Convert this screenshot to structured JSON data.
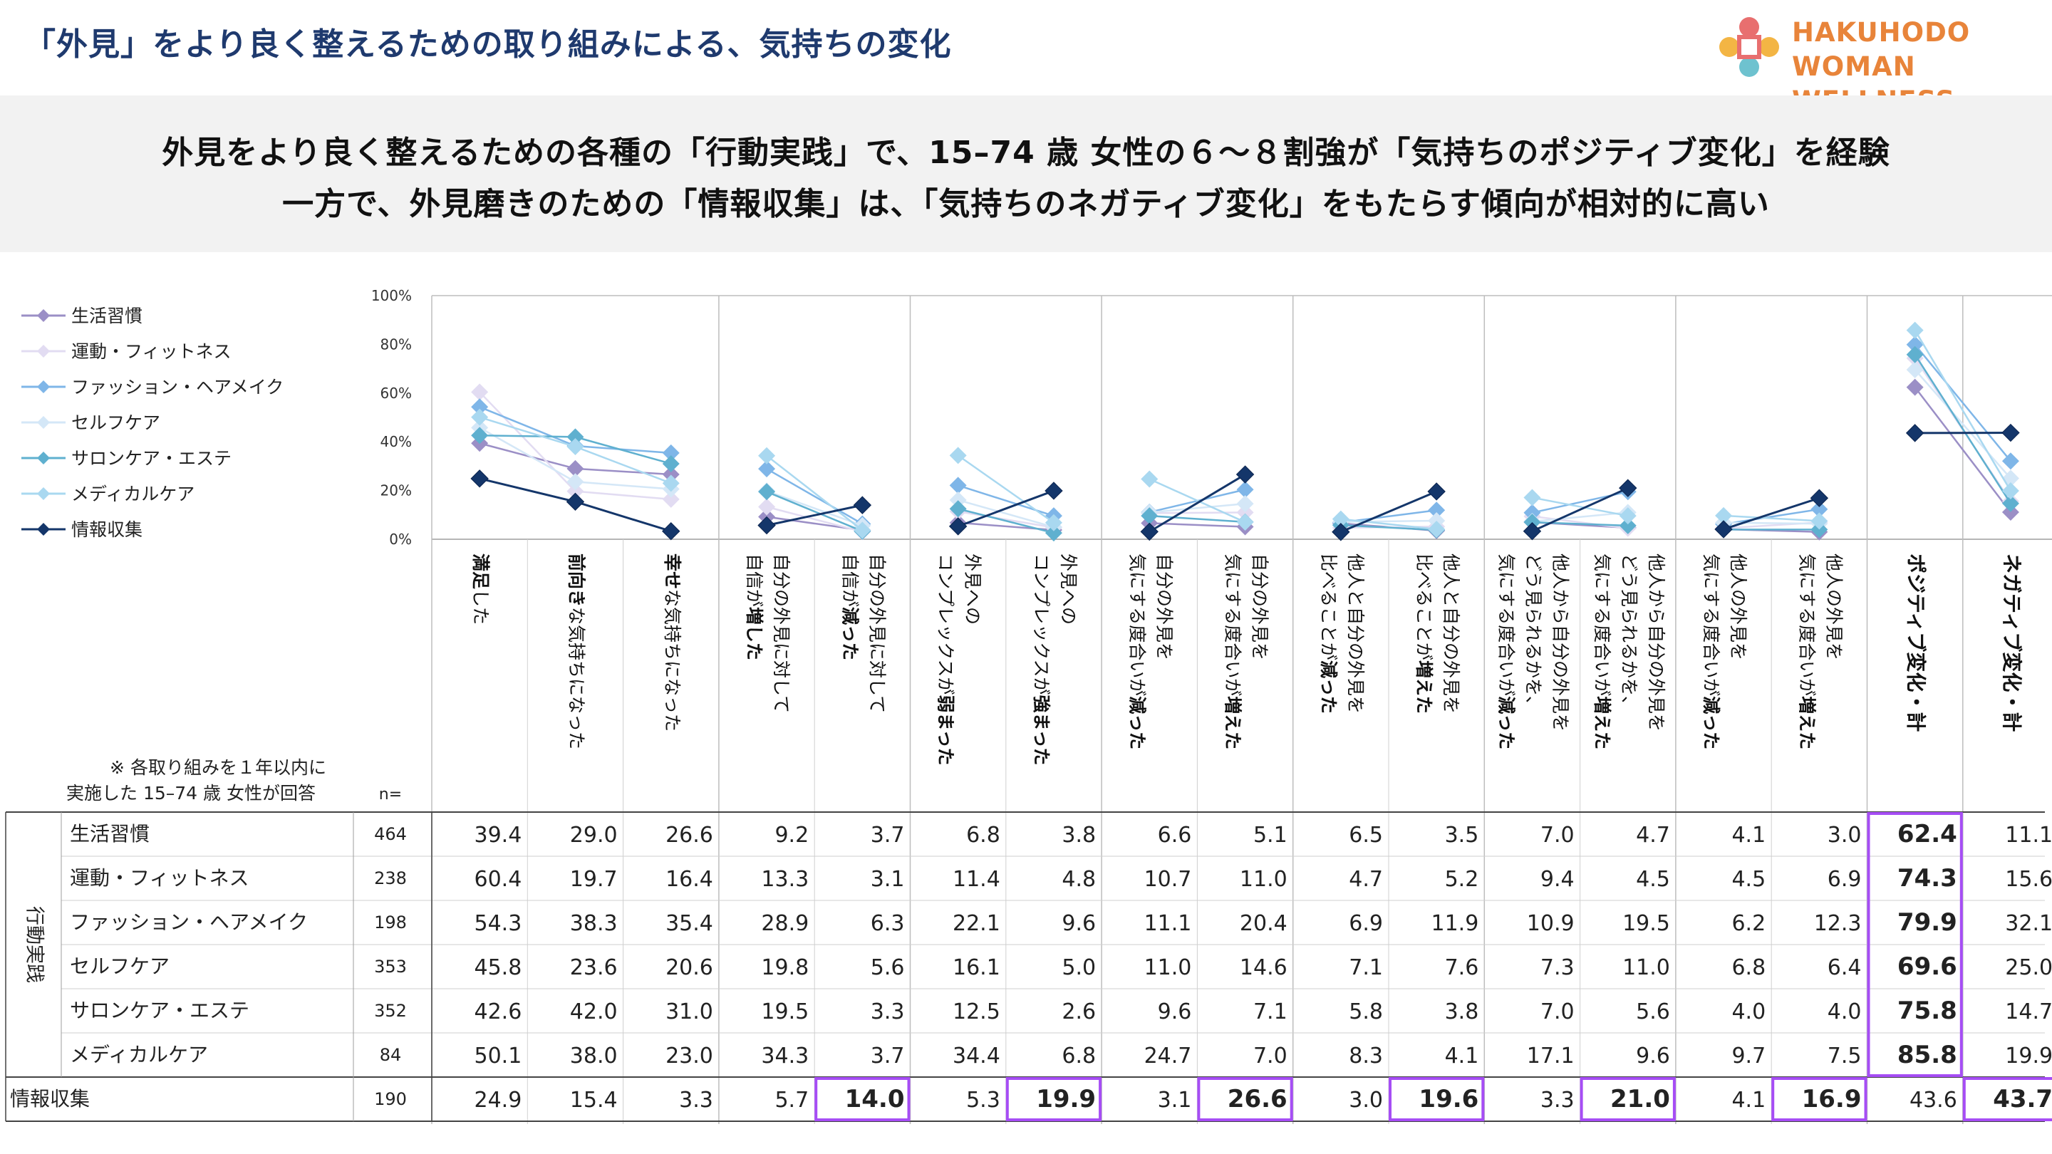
{
  "header": {
    "title": "「外見」をより良く整えるための取り組みによる、気持ちの変化",
    "brand_line1": "HAKUHODO WOMAN",
    "brand_line2": "WELLNESS PROGRAM"
  },
  "banner": {
    "line1": "外見をより良く整えるための各種の「行動実践」で、15–74 歳 女性の６～８割強が「気持ちのポジティブ変化」を経験",
    "line2": "一方で、外見磨きのための「情報収集」は、「気持ちのネガティブ変化」をもたらす傾向が相対的に高い"
  },
  "chart_data": {
    "type": "line",
    "ylim": [
      0,
      100
    ],
    "yticks": [
      "100%",
      "80%",
      "60%",
      "40%",
      "20%",
      "0%"
    ],
    "note_line1": "※ 各取り組みを１年以内に",
    "note_line2": "実施した 15–74 歳 女性が回答",
    "n_label": "n=",
    "group_label": "行動実践",
    "columns": [
      {
        "label": "満足した",
        "bold": "満足"
      },
      {
        "label": "前向きな気持ちになった",
        "bold": "前向き"
      },
      {
        "label": "幸せな気持ちになった",
        "bold": "幸せ"
      },
      {
        "label": "自分の外見に対して\n自信が増した",
        "bold": "増した"
      },
      {
        "label": "自分の外見に対して\n自信が減った",
        "bold": "減った"
      },
      {
        "label": "外見への\nコンプレックスが弱まった",
        "bold": "弱まった"
      },
      {
        "label": "外見への\nコンプレックスが強まった",
        "bold": "強まった"
      },
      {
        "label": "自分の外見を\n気にする度合いが減った",
        "bold": "減った"
      },
      {
        "label": "自分の外見を\n気にする度合いが増えた",
        "bold": "増えた"
      },
      {
        "label": "他人と自分の外見を\n比べることが減った",
        "bold": "減った"
      },
      {
        "label": "他人と自分の外見を\n比べることが増えた",
        "bold": "増えた"
      },
      {
        "label": "他人から自分の外見を\nどう見られるかを、\n気にする度合いが減った",
        "bold": "減った"
      },
      {
        "label": "他人から自分の外見を\nどう見られるかを、\n気にする度合いが増えた",
        "bold": "増えた"
      },
      {
        "label": "他人の外見を\n気にする度合いが減った",
        "bold": "減った"
      },
      {
        "label": "他人の外見を\n気にする度合いが増えた",
        "bold": "増えた"
      },
      {
        "label": "ポジティブ変化・計",
        "bold": "ポジティブ変化・計"
      },
      {
        "label": "ネガティブ変化・計",
        "bold": "ネガティブ変化・計"
      }
    ],
    "series": [
      {
        "name": "生活習慣",
        "n": "464",
        "color": "#9b8fc6",
        "values": [
          "39.4",
          "29.0",
          "26.6",
          "9.2",
          "3.7",
          "6.8",
          "3.8",
          "6.6",
          "5.1",
          "6.5",
          "3.5",
          "7.0",
          "4.7",
          "4.1",
          "3.0",
          "62.4",
          "11.1"
        ]
      },
      {
        "name": "運動・フィットネス",
        "n": "238",
        "color": "#e2dcf2",
        "values": [
          "60.4",
          "19.7",
          "16.4",
          "13.3",
          "3.1",
          "11.4",
          "4.8",
          "10.7",
          "11.0",
          "4.7",
          "5.2",
          "9.4",
          "4.5",
          "4.5",
          "6.9",
          "74.3",
          "15.6"
        ]
      },
      {
        "name": "ファッション・ヘアメイク",
        "n": "198",
        "color": "#7fb6e8",
        "values": [
          "54.3",
          "38.3",
          "35.4",
          "28.9",
          "6.3",
          "22.1",
          "9.6",
          "11.1",
          "20.4",
          "6.9",
          "11.9",
          "10.9",
          "19.5",
          "6.2",
          "12.3",
          "79.9",
          "32.1"
        ]
      },
      {
        "name": "セルフケア",
        "n": "353",
        "color": "#d4e7f7",
        "values": [
          "45.8",
          "23.6",
          "20.6",
          "19.8",
          "5.6",
          "16.1",
          "5.0",
          "11.0",
          "14.6",
          "7.1",
          "7.6",
          "7.3",
          "11.0",
          "6.8",
          "6.4",
          "69.6",
          "25.0"
        ]
      },
      {
        "name": "サロンケア・エステ",
        "n": "352",
        "color": "#5fb0cf",
        "values": [
          "42.6",
          "42.0",
          "31.0",
          "19.5",
          "3.3",
          "12.5",
          "2.6",
          "9.6",
          "7.1",
          "5.8",
          "3.8",
          "7.0",
          "5.6",
          "4.0",
          "4.0",
          "75.8",
          "14.7"
        ]
      },
      {
        "name": "メディカルケア",
        "n": "84",
        "color": "#a9d8f0",
        "values": [
          "50.1",
          "38.0",
          "23.0",
          "34.3",
          "3.7",
          "34.4",
          "6.8",
          "24.7",
          "7.0",
          "8.3",
          "4.1",
          "17.1",
          "9.6",
          "9.7",
          "7.5",
          "85.8",
          "19.9"
        ]
      },
      {
        "name": "情報収集",
        "n": "190",
        "color": "#14366a",
        "values": [
          "24.9",
          "15.4",
          "3.3",
          "5.7",
          "14.0",
          "5.3",
          "19.9",
          "3.1",
          "26.6",
          "3.0",
          "19.6",
          "3.3",
          "21.0",
          "4.1",
          "16.9",
          "43.6",
          "43.7"
        ]
      }
    ],
    "highlight_color": "#a64df5"
  }
}
